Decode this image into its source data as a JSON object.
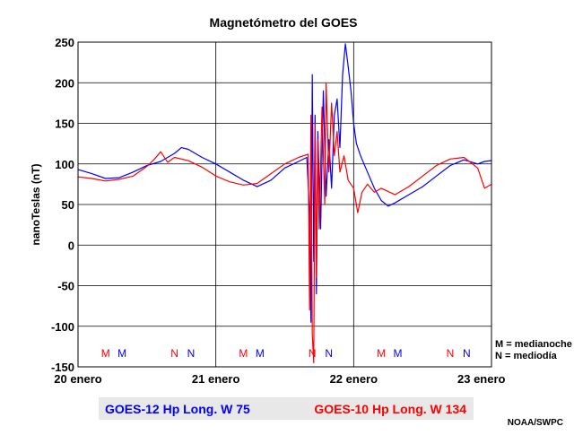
{
  "chart_data": {
    "type": "line",
    "title": "Magnetómetro del GOES",
    "ylabel": "nanoTeslas (nT)",
    "xlabel": "",
    "ylim": [
      -150,
      250
    ],
    "xlim": [
      0,
      3
    ],
    "x_unit": "days since 20 enero 00 UT",
    "yticks": [
      250,
      200,
      150,
      100,
      50,
      0,
      -50,
      -100,
      -150
    ],
    "xticks": [
      {
        "x": 0,
        "label": "20 enero"
      },
      {
        "x": 1,
        "label": "21 enero"
      },
      {
        "x": 2,
        "label": "22 enero"
      },
      {
        "x": 3,
        "label": "23 enero"
      }
    ],
    "grid": true,
    "legend_position": "bottom",
    "series": [
      {
        "name": "GOES-12 Hp Long. W 75",
        "color": "#0000ff",
        "points": [
          [
            0,
            93
          ],
          [
            0.1,
            88
          ],
          [
            0.2,
            82
          ],
          [
            0.3,
            83
          ],
          [
            0.4,
            90
          ],
          [
            0.5,
            98
          ],
          [
            0.6,
            103
          ],
          [
            0.7,
            113
          ],
          [
            0.75,
            120
          ],
          [
            0.8,
            118
          ],
          [
            0.9,
            108
          ],
          [
            1.0,
            100
          ],
          [
            1.1,
            90
          ],
          [
            1.2,
            80
          ],
          [
            1.3,
            72
          ],
          [
            1.4,
            80
          ],
          [
            1.5,
            95
          ],
          [
            1.6,
            103
          ],
          [
            1.66,
            108
          ],
          [
            1.68,
            40
          ],
          [
            1.69,
            -95
          ],
          [
            1.7,
            210
          ],
          [
            1.71,
            -20
          ],
          [
            1.72,
            160
          ],
          [
            1.73,
            -60
          ],
          [
            1.74,
            140
          ],
          [
            1.76,
            20
          ],
          [
            1.78,
            190
          ],
          [
            1.8,
            60
          ],
          [
            1.82,
            130
          ],
          [
            1.84,
            70
          ],
          [
            1.86,
            160
          ],
          [
            1.88,
            180
          ],
          [
            1.9,
            120
          ],
          [
            1.92,
            210
          ],
          [
            1.94,
            248
          ],
          [
            1.96,
            220
          ],
          [
            1.98,
            190
          ],
          [
            2.0,
            150
          ],
          [
            2.02,
            125
          ],
          [
            2.05,
            110
          ],
          [
            2.1,
            90
          ],
          [
            2.15,
            70
          ],
          [
            2.2,
            55
          ],
          [
            2.25,
            48
          ],
          [
            2.3,
            52
          ],
          [
            2.4,
            62
          ],
          [
            2.5,
            72
          ],
          [
            2.6,
            85
          ],
          [
            2.7,
            98
          ],
          [
            2.8,
            105
          ],
          [
            2.9,
            100
          ],
          [
            2.95,
            103
          ],
          [
            3.0,
            104
          ]
        ]
      },
      {
        "name": "GOES-10 Hp Long. W 134",
        "color": "#ff0000",
        "points": [
          [
            0,
            84
          ],
          [
            0.1,
            82
          ],
          [
            0.2,
            79
          ],
          [
            0.3,
            81
          ],
          [
            0.4,
            85
          ],
          [
            0.5,
            97
          ],
          [
            0.55,
            105
          ],
          [
            0.6,
            115
          ],
          [
            0.65,
            102
          ],
          [
            0.7,
            108
          ],
          [
            0.8,
            104
          ],
          [
            0.9,
            96
          ],
          [
            1.0,
            85
          ],
          [
            1.1,
            78
          ],
          [
            1.2,
            74
          ],
          [
            1.3,
            76
          ],
          [
            1.4,
            88
          ],
          [
            1.5,
            100
          ],
          [
            1.6,
            108
          ],
          [
            1.67,
            112
          ],
          [
            1.68,
            -80
          ],
          [
            1.69,
            160
          ],
          [
            1.7,
            -110
          ],
          [
            1.71,
            -145
          ],
          [
            1.72,
            150
          ],
          [
            1.73,
            -40
          ],
          [
            1.74,
            130
          ],
          [
            1.75,
            20
          ],
          [
            1.77,
            170
          ],
          [
            1.79,
            50
          ],
          [
            1.8,
            200
          ],
          [
            1.82,
            90
          ],
          [
            1.84,
            175
          ],
          [
            1.86,
            110
          ],
          [
            1.88,
            140
          ],
          [
            1.9,
            90
          ],
          [
            1.93,
            110
          ],
          [
            1.96,
            80
          ],
          [
            2.0,
            70
          ],
          [
            2.03,
            40
          ],
          [
            2.06,
            65
          ],
          [
            2.1,
            75
          ],
          [
            2.15,
            65
          ],
          [
            2.2,
            70
          ],
          [
            2.3,
            62
          ],
          [
            2.4,
            72
          ],
          [
            2.5,
            85
          ],
          [
            2.6,
            98
          ],
          [
            2.7,
            106
          ],
          [
            2.8,
            108
          ],
          [
            2.9,
            95
          ],
          [
            2.95,
            70
          ],
          [
            3.0,
            75
          ]
        ]
      }
    ],
    "markers": [
      {
        "label": "M",
        "x": 0.2,
        "color": "#ff0000"
      },
      {
        "label": "M",
        "x": 0.32,
        "color": "#0000ff"
      },
      {
        "label": "N",
        "x": 0.7,
        "color": "#ff0000"
      },
      {
        "label": "N",
        "x": 0.82,
        "color": "#0000ff"
      },
      {
        "label": "M",
        "x": 1.2,
        "color": "#ff0000"
      },
      {
        "label": "M",
        "x": 1.32,
        "color": "#0000ff"
      },
      {
        "label": "N",
        "x": 1.7,
        "color": "#ff0000"
      },
      {
        "label": "N",
        "x": 1.82,
        "color": "#0000ff"
      },
      {
        "label": "M",
        "x": 2.2,
        "color": "#ff0000"
      },
      {
        "label": "M",
        "x": 2.32,
        "color": "#0000ff"
      },
      {
        "label": "N",
        "x": 2.7,
        "color": "#ff0000"
      },
      {
        "label": "N",
        "x": 2.82,
        "color": "#0000ff"
      }
    ],
    "annotations": [
      "M = medianoche",
      "N = mediodía"
    ]
  },
  "footer": {
    "legend_box_color": "#e8e8e8",
    "source": "NOAA/SWPC"
  }
}
